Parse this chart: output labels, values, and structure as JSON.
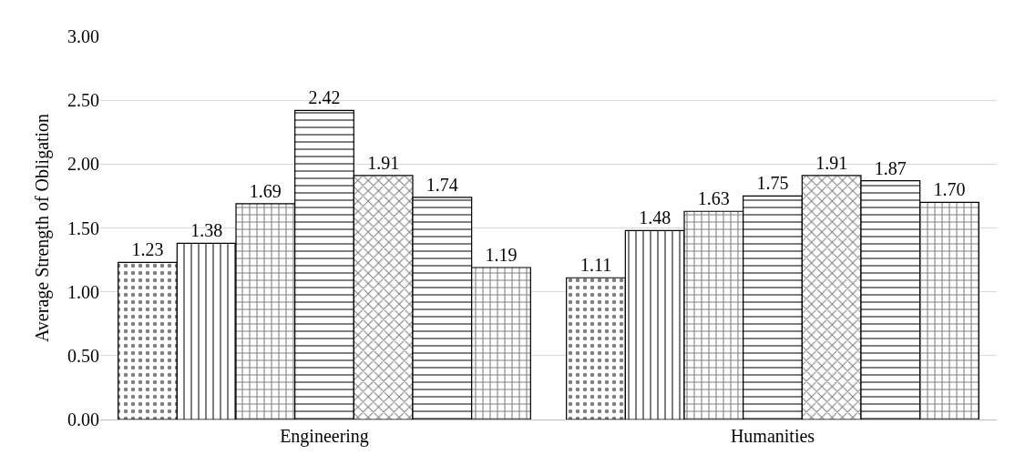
{
  "chart_data": {
    "type": "bar",
    "ylabel": "Average Strength of Obligation",
    "categories": [
      "Engineering",
      "Humanities"
    ],
    "series": [
      {
        "color": "#000000",
        "values": [
          1.23,
          1.11
        ],
        "value_labels": [
          "1.23",
          "1.11"
        ]
      },
      {
        "color": "#000000",
        "values": [
          1.38,
          1.48
        ],
        "value_labels": [
          "1.38",
          "1.48"
        ]
      },
      {
        "color": "#000000",
        "values": [
          1.69,
          1.63
        ],
        "value_labels": [
          "1.69",
          "1.63"
        ]
      },
      {
        "color": "#000000",
        "values": [
          2.42,
          1.75
        ],
        "value_labels": [
          "2.42",
          "1.75"
        ]
      },
      {
        "color": "#000000",
        "values": [
          1.91,
          1.91
        ],
        "value_labels": [
          "1.91",
          "1.91"
        ]
      },
      {
        "color": "#000000",
        "values": [
          1.74,
          1.87
        ],
        "value_labels": [
          "1.74",
          "1.87"
        ]
      },
      {
        "color": "#000000",
        "values": [
          1.19,
          1.7
        ],
        "value_labels": [
          "1.19",
          "1.70"
        ]
      }
    ],
    "ylim": [
      0,
      3
    ],
    "yticks": [
      {
        "value": 0,
        "label": "0.00"
      },
      {
        "value": 0.5,
        "label": "0.50"
      },
      {
        "value": 1,
        "label": "1.00"
      },
      {
        "value": 1.5,
        "label": "1.50"
      },
      {
        "value": 2,
        "label": "2.00"
      },
      {
        "value": 2.5,
        "label": "2.50"
      },
      {
        "value": 3,
        "label": "3.00"
      }
    ],
    "grid": "y"
  }
}
